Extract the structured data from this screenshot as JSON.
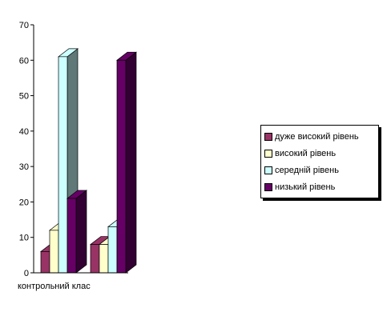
{
  "chart_data": {
    "type": "bar",
    "categories": [
      "контрольний клас",
      ""
    ],
    "series": [
      {
        "name": "дуже високий рівень",
        "values": [
          6,
          8
        ],
        "color": "#993366"
      },
      {
        "name": "високий рівень",
        "values": [
          12,
          8
        ],
        "color": "#ffffcc"
      },
      {
        "name": "середній рівень",
        "values": [
          61,
          13
        ],
        "color": "#ccffff"
      },
      {
        "name": "низький рівень",
        "values": [
          21,
          60
        ],
        "color": "#660066"
      }
    ],
    "series_3d_side_colors": [
      "#4d1a33",
      "#80806a",
      "#5f7f7f",
      "#330033"
    ],
    "highlight_side_color": "#607878",
    "yticks": [
      0,
      10,
      20,
      30,
      40,
      50,
      60,
      70
    ],
    "ylim": [
      0,
      70
    ],
    "title": "",
    "xlabel": "",
    "ylabel": "",
    "grid": false,
    "legend_position": "right",
    "style": "3d-column"
  }
}
